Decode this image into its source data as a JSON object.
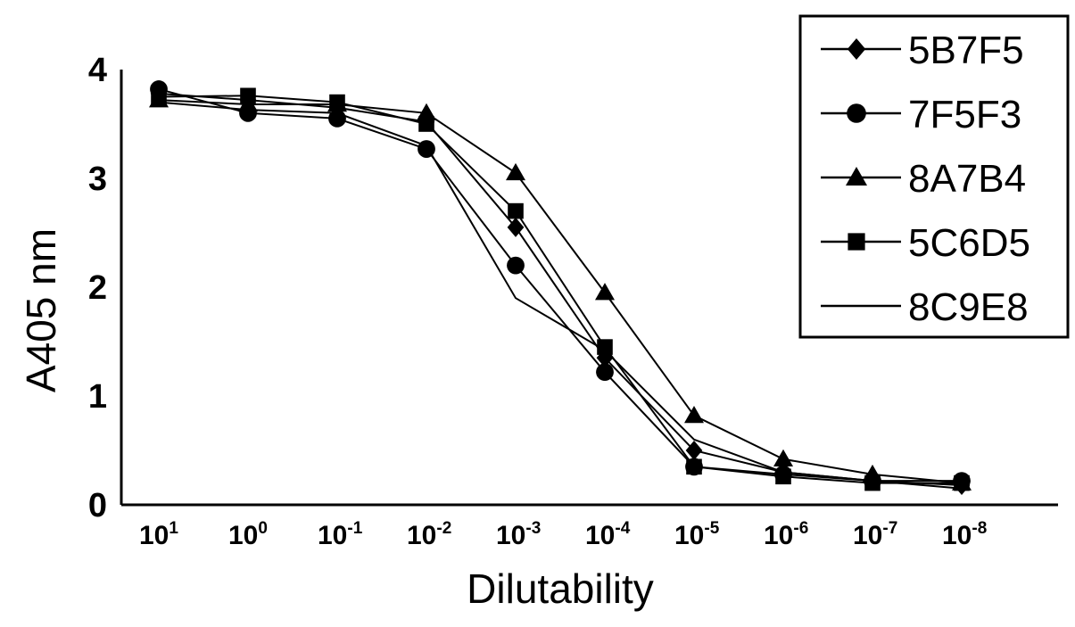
{
  "chart_data": {
    "type": "line",
    "title": "",
    "xlabel": "Dilutability",
    "ylabel": "A405 nm",
    "ylim": [
      0,
      4
    ],
    "yticks": [
      "0",
      "1",
      "2",
      "3",
      "4"
    ],
    "x": [
      {
        "base": "10",
        "exp": "1"
      },
      {
        "base": "10",
        "exp": "0"
      },
      {
        "base": "10",
        "exp": "-1"
      },
      {
        "base": "10",
        "exp": "-2"
      },
      {
        "base": "10",
        "exp": "-3"
      },
      {
        "base": "10",
        "exp": "-4"
      },
      {
        "base": "10",
        "exp": "-5"
      },
      {
        "base": "10",
        "exp": "-6"
      },
      {
        "base": "10",
        "exp": "-7"
      },
      {
        "base": "10",
        "exp": "-8"
      }
    ],
    "series": [
      {
        "name": "5B7F5",
        "marker": "diamond",
        "values": [
          3.78,
          3.72,
          3.65,
          3.52,
          2.55,
          1.35,
          0.5,
          0.3,
          0.22,
          0.18
        ]
      },
      {
        "name": "7F5F3",
        "marker": "circle",
        "values": [
          3.82,
          3.6,
          3.55,
          3.27,
          2.2,
          1.22,
          0.35,
          0.28,
          0.22,
          0.22
        ]
      },
      {
        "name": "8A7B4",
        "marker": "triangle",
        "values": [
          3.72,
          3.68,
          3.68,
          3.6,
          3.05,
          1.95,
          0.82,
          0.42,
          0.28,
          0.2
        ]
      },
      {
        "name": "5C6D5",
        "marker": "square",
        "values": [
          3.75,
          3.76,
          3.7,
          3.5,
          2.7,
          1.45,
          0.35,
          0.26,
          0.2,
          0.2
        ]
      },
      {
        "name": "8C9E8",
        "marker": "none",
        "values": [
          3.7,
          3.63,
          3.6,
          3.3,
          1.9,
          1.42,
          0.6,
          0.3,
          0.22,
          0.15
        ]
      }
    ],
    "grid": false,
    "legend_position": "top-right"
  }
}
